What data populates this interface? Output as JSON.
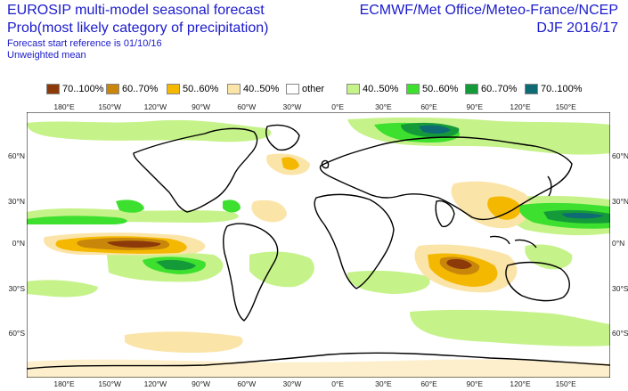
{
  "header": {
    "title_left_1": "EUROSIP multi-model seasonal forecast",
    "title_left_2": "Prob(most likely category of precipitation)",
    "title_left_3": "Forecast start reference is 01/10/16",
    "title_left_4": "Unweighted mean",
    "title_right_1": "ECMWF/Met Office/Meteo-France/NCEP",
    "title_right_2": "DJF 2016/17"
  },
  "legend": [
    {
      "label": "70..100%",
      "color": "#8c3a0a"
    },
    {
      "label": "60..70%",
      "color": "#c8860a"
    },
    {
      "label": "50..60%",
      "color": "#f5b800"
    },
    {
      "label": "40..50%",
      "color": "#fbe4a8"
    },
    {
      "label": "other",
      "color": "#ffffff"
    },
    {
      "label": "40..50%",
      "color": "#c6f28a"
    },
    {
      "label": "50..60%",
      "color": "#3de02e"
    },
    {
      "label": "60..70%",
      "color": "#159a3a"
    },
    {
      "label": "70..100%",
      "color": "#0e6a73"
    }
  ],
  "axes": {
    "x_ticks": [
      "180°E",
      "150°W",
      "120°W",
      "90°W",
      "60°W",
      "30°W",
      "0°E",
      "30°E",
      "60°E",
      "90°E",
      "120°E",
      "150°E"
    ],
    "y_ticks": [
      "60°N",
      "30°N",
      "0°N",
      "30°S",
      "60°S"
    ]
  }
}
